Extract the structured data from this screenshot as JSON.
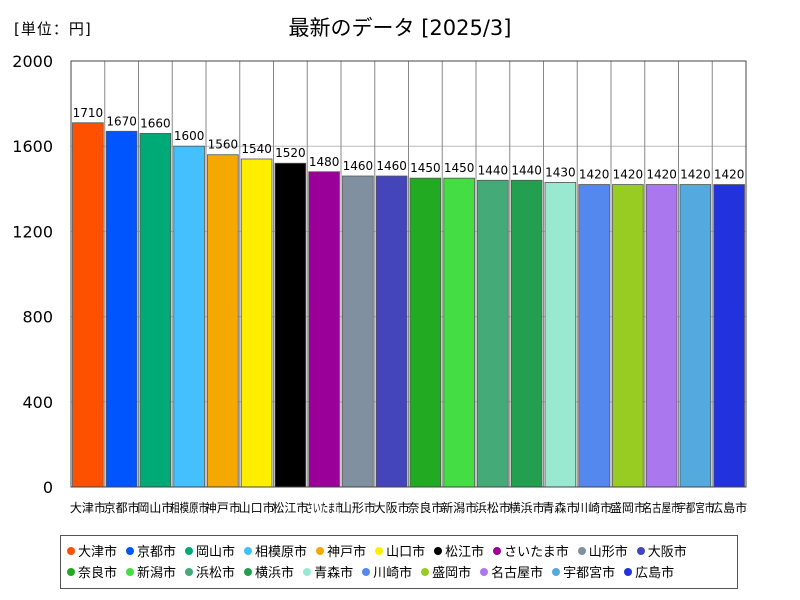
{
  "unit_label": "[単位：円]",
  "chart_data": {
    "type": "bar",
    "title": "最新のデータ [2025/3]",
    "ylim": [
      0,
      2000
    ],
    "yticks": [
      0,
      400,
      800,
      1200,
      1600,
      2000
    ],
    "grid": true,
    "legend_position": "bottom",
    "categories": [
      "大津市",
      "京都市",
      "岡山市",
      "相模原市",
      "神戸市",
      "山口市",
      "松江市",
      "さいたま市",
      "山形市",
      "大阪市",
      "奈良市",
      "新潟市",
      "浜松市",
      "横浜市",
      "青森市",
      "川崎市",
      "盛岡市",
      "名古屋市",
      "宇都宮市",
      "広島市"
    ],
    "values": [
      1710,
      1670,
      1660,
      1600,
      1560,
      1540,
      1520,
      1480,
      1460,
      1460,
      1450,
      1450,
      1440,
      1440,
      1430,
      1420,
      1420,
      1420,
      1420,
      1420
    ],
    "colors": [
      "#ff5000",
      "#0055ff",
      "#00aa77",
      "#44c0ff",
      "#f5a800",
      "#ffee00",
      "#000000",
      "#9a0099",
      "#8090a0",
      "#4444bb",
      "#22aa22",
      "#44dd44",
      "#44aa77",
      "#22a050",
      "#99e8d0",
      "#5588ee",
      "#99cc22",
      "#aa77ee",
      "#55aadd",
      "#2233dd"
    ]
  }
}
